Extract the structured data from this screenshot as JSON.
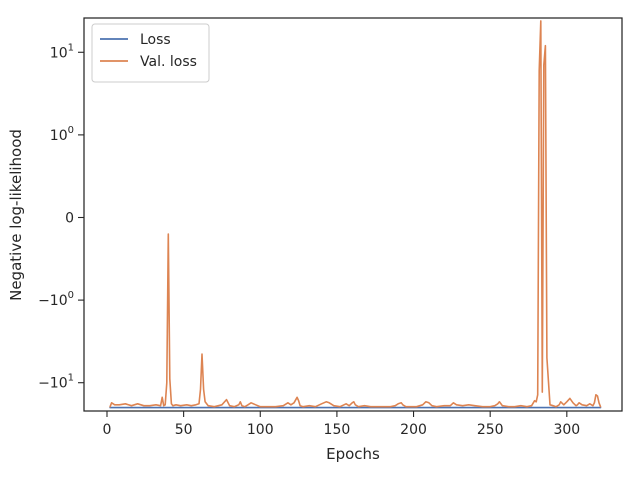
{
  "chart_data": {
    "type": "line",
    "xlabel": "Epochs",
    "ylabel": "Negative log-likelihood",
    "xlim": [
      -15,
      336
    ],
    "ylim": [
      -22,
      26
    ],
    "yscale": "symlog",
    "grid": false,
    "legend_position": "top-left",
    "x_ticks": [
      {
        "value": 0,
        "label": "0"
      },
      {
        "value": 50,
        "label": "50"
      },
      {
        "value": 100,
        "label": "100"
      },
      {
        "value": 150,
        "label": "150"
      },
      {
        "value": 200,
        "label": "200"
      },
      {
        "value": 250,
        "label": "250"
      },
      {
        "value": 300,
        "label": "300"
      }
    ],
    "y_ticks": [
      {
        "value": 10,
        "label_base": "10",
        "label_exp": "1"
      },
      {
        "value": 1,
        "label_base": "10",
        "label_exp": "0"
      },
      {
        "value": 0,
        "label_base": "0",
        "label_exp": ""
      },
      {
        "value": -1,
        "label_base": "−10",
        "label_exp": "0"
      },
      {
        "value": -10,
        "label_base": "−10",
        "label_exp": "1"
      }
    ],
    "series": [
      {
        "name": "Loss",
        "color": "#4c72b0",
        "x": [
          2,
          50,
          100,
          150,
          200,
          250,
          300,
          322
        ],
        "y": [
          -20.0,
          -20.0,
          -20.0,
          -20.0,
          -20.0,
          -20.0,
          -20.0,
          -20.0
        ]
      },
      {
        "name": "Val. loss",
        "color": "#dd8452",
        "x": [
          2,
          3,
          5,
          8,
          12,
          16,
          20,
          24,
          28,
          32,
          35,
          36,
          37,
          38,
          39,
          40,
          41,
          42,
          43,
          45,
          48,
          52,
          55,
          58,
          60,
          61,
          62,
          63,
          64,
          66,
          70,
          75,
          78,
          80,
          83,
          86,
          87,
          88,
          90,
          92,
          94,
          97,
          100,
          105,
          110,
          115,
          118,
          120,
          122,
          124,
          125,
          126,
          128,
          132,
          136,
          140,
          143,
          145,
          148,
          152,
          156,
          158,
          160,
          161,
          162,
          164,
          168,
          172,
          176,
          180,
          185,
          188,
          190,
          192,
          193,
          195,
          198,
          202,
          206,
          208,
          210,
          212,
          215,
          220,
          224,
          226,
          228,
          232,
          236,
          240,
          245,
          250,
          253,
          255,
          256,
          258,
          262,
          266,
          270,
          274,
          277,
          279,
          280,
          281,
          282,
          283,
          284,
          285,
          286,
          287,
          289,
          291,
          293,
          295,
          296,
          298,
          300,
          302,
          304,
          306,
          307,
          308,
          310,
          313,
          315,
          317,
          318,
          319,
          320,
          321,
          322
        ],
        "y": [
          -19.5,
          -17.5,
          -18.5,
          -18.5,
          -18.0,
          -19.0,
          -18.0,
          -19.0,
          -19.0,
          -18.5,
          -19.0,
          -15.0,
          -19.0,
          -18.5,
          -10.0,
          -0.2,
          -9.0,
          -18.0,
          -19.0,
          -18.5,
          -19.0,
          -18.5,
          -19.0,
          -18.5,
          -18.0,
          -12.0,
          -4.5,
          -12.0,
          -17.0,
          -19.0,
          -19.5,
          -18.5,
          -16.0,
          -19.0,
          -19.5,
          -18.5,
          -17.0,
          -19.0,
          -19.5,
          -18.5,
          -17.5,
          -18.5,
          -19.5,
          -19.5,
          -19.5,
          -19.0,
          -17.5,
          -18.5,
          -17.5,
          -15.0,
          -16.5,
          -19.0,
          -19.5,
          -19.0,
          -19.5,
          -18.0,
          -17.0,
          -17.5,
          -19.0,
          -19.5,
          -18.0,
          -19.0,
          -17.5,
          -17.0,
          -18.5,
          -19.5,
          -19.0,
          -19.5,
          -19.5,
          -19.5,
          -19.5,
          -19.0,
          -18.0,
          -17.5,
          -18.5,
          -19.5,
          -19.5,
          -19.5,
          -18.5,
          -17.0,
          -17.5,
          -19.0,
          -19.5,
          -19.0,
          -19.0,
          -17.5,
          -18.5,
          -19.0,
          -18.5,
          -19.0,
          -19.5,
          -19.5,
          -19.0,
          -18.0,
          -17.0,
          -19.0,
          -19.5,
          -19.5,
          -19.0,
          -19.5,
          -19.0,
          -16.5,
          -17.0,
          -14.0,
          6.0,
          24.0,
          -13.0,
          7.0,
          12.0,
          -5.0,
          -18.5,
          -19.0,
          -19.5,
          -18.5,
          -17.0,
          -18.5,
          -17.0,
          -15.5,
          -17.5,
          -19.0,
          -18.5,
          -17.5,
          -18.5,
          -19.0,
          -18.0,
          -19.0,
          -17.5,
          -14.0,
          -14.5,
          -17.5,
          -19.5
        ]
      }
    ]
  }
}
